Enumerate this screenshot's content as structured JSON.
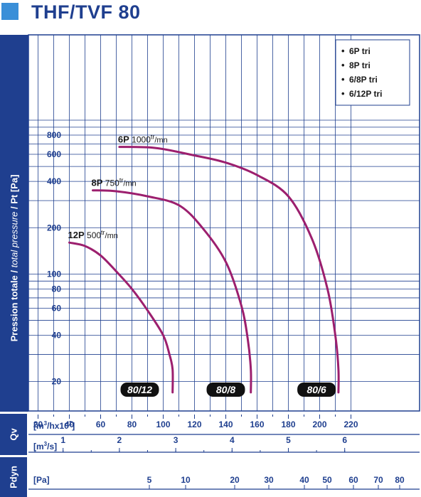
{
  "title": "THF/TVF 80",
  "ylabel": {
    "main": "Pression totale",
    "sep": " / ",
    "italic": "total pressure",
    "tail": " / Pt [Pa]"
  },
  "chart_data": {
    "type": "line",
    "title": "THF/TVF 80",
    "ylabel": "Pression totale / total pressure / Pt [Pa]",
    "yscale": "log",
    "ylim": [
      17,
      1200
    ],
    "yticks": [
      20,
      40,
      60,
      80,
      100,
      200,
      400,
      600,
      800
    ],
    "xlabel": "Qv [m3/hx10^2]",
    "xlim": [
      0,
      225
    ],
    "xticks": [
      20,
      40,
      60,
      80,
      100,
      120,
      140,
      160,
      180,
      200,
      220
    ],
    "secondary_axis": {
      "label": "[m3/s]",
      "ticks": [
        1,
        2,
        3,
        4,
        5,
        6
      ]
    },
    "pdyn_axis": {
      "label": "[Pa]",
      "ticks": [
        5,
        10,
        20,
        30,
        40,
        50,
        60,
        70,
        80
      ]
    },
    "axis_labels": {
      "qv": "Qv",
      "pdyn": "Pdyn",
      "m3h_prefix": "[m",
      "m3h_suffix": "/hx10",
      "m3h_close": "]",
      "m3s": "[m",
      "m3s_suffix": "/s]",
      "pa": "[Pa]"
    },
    "legend": {
      "position": "top-right",
      "items": [
        "6P tri",
        "8P tri",
        "6/8P tri",
        "6/12P tri"
      ]
    },
    "series": [
      {
        "name": "12P",
        "speed": "500",
        "unit": "tr/mn",
        "color": "#9c1f6e",
        "x": [
          40,
          50,
          60,
          70,
          80,
          90,
          100,
          104,
          106,
          106
        ],
        "y": [
          160,
          152,
          132,
          104,
          80,
          58,
          40,
          30,
          24,
          17
        ]
      },
      {
        "name": "8P",
        "speed": "750",
        "unit": "tr/mn",
        "color": "#9c1f6e",
        "x": [
          55,
          70,
          90,
          110,
          125,
          140,
          150,
          154,
          156,
          156
        ],
        "y": [
          350,
          345,
          320,
          280,
          200,
          120,
          62,
          38,
          24,
          17
        ]
      },
      {
        "name": "6P",
        "speed": "1000",
        "unit": "tr/mn",
        "color": "#9c1f6e",
        "x": [
          72,
          95,
          120,
          140,
          160,
          180,
          195,
          205,
          210,
          212,
          212
        ],
        "y": [
          670,
          660,
          590,
          530,
          440,
          320,
          170,
          80,
          40,
          24,
          17
        ]
      }
    ],
    "badges": [
      "80/12",
      "80/8",
      "80/6"
    ],
    "grid": true
  }
}
